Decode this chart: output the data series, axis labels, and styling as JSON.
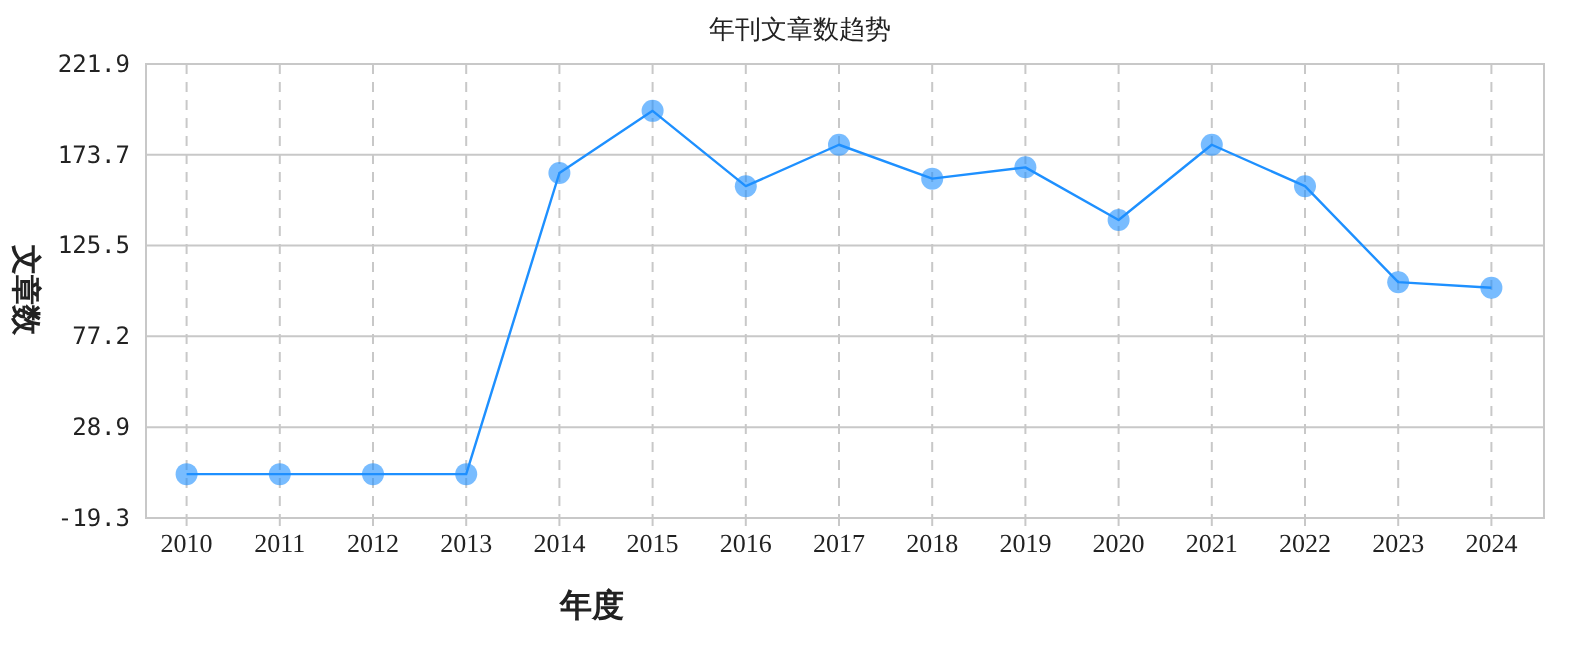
{
  "chart_data": {
    "type": "line",
    "title": "年刊文章数趋势",
    "xlabel": "年度",
    "ylabel": "文章数",
    "categories": [
      "2010",
      "2011",
      "2012",
      "2013",
      "2014",
      "2015",
      "2016",
      "2017",
      "2018",
      "2019",
      "2020",
      "2021",
      "2022",
      "2023",
      "2024"
    ],
    "series": [
      {
        "color": "#1e90ff",
        "values": [
          4,
          4,
          4,
          4,
          164,
          197,
          157,
          179,
          161,
          167,
          139,
          179,
          157,
          106,
          103
        ]
      }
    ],
    "ylim": [
      -19.3,
      221.9
    ],
    "yticks": [
      -19.3,
      28.9,
      77.2,
      125.5,
      173.7,
      221.9
    ],
    "grid": true,
    "marker": "circle",
    "line_style": "solid"
  }
}
